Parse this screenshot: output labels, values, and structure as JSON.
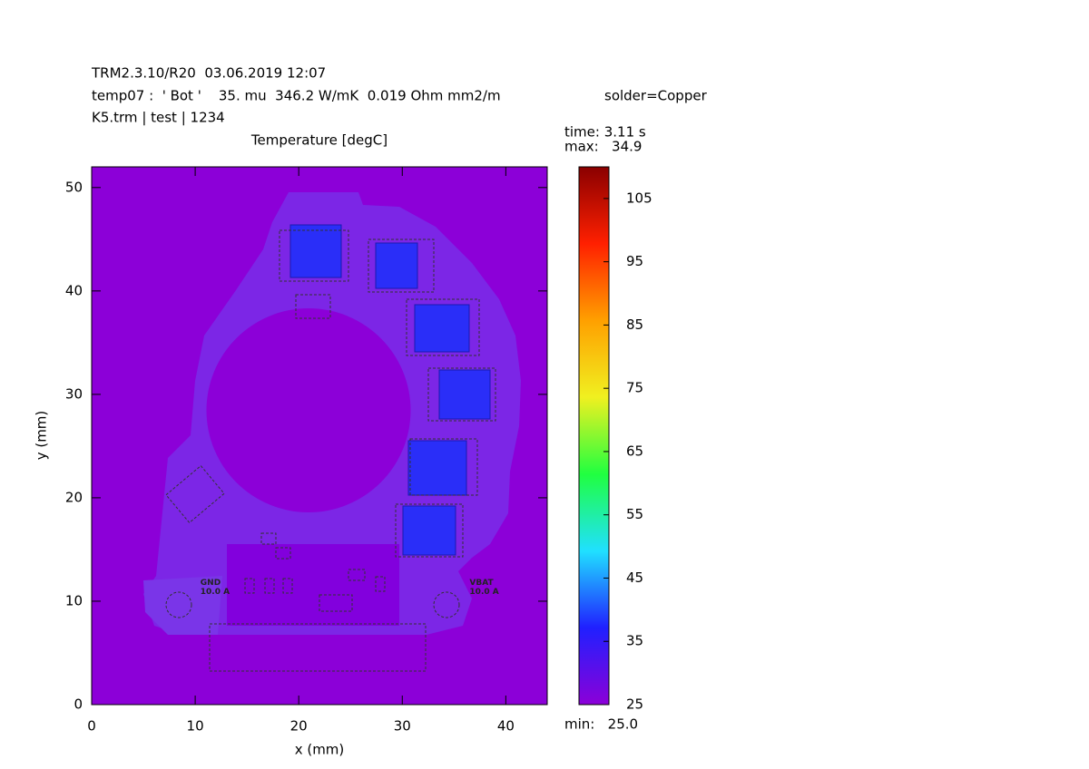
{
  "chart_data": {
    "type": "heatmap",
    "header": [
      "TRM2.3.10/R20  03.06.2019 12:07",
      "temp07 :  ' Bot '    35. mu  346.2 W/mK  0.019 Ohm mm2/m",
      "K5.trm | test | 1234"
    ],
    "header_right": "solder=Copper",
    "title": "Temperature [degC]",
    "time": "time: 3.11 s",
    "max": "max:   34.9",
    "min": "min:   25.0",
    "xlabel": "x (mm)",
    "ylabel": "y (mm)",
    "xlim": [
      0,
      44
    ],
    "xticks": [
      0,
      10,
      20,
      30,
      40
    ],
    "ylim": [
      0,
      52
    ],
    "yticks": [
      0,
      10,
      20,
      30,
      40,
      50
    ],
    "colorbar_lim": [
      25,
      110
    ],
    "colorbar_ticks": [
      25,
      35,
      45,
      55,
      65,
      75,
      85,
      95,
      105
    ],
    "colormap": [
      "#8c00d8",
      "#2020ff",
      "#20e0ff",
      "#20ff40",
      "#f0f020",
      "#ffa000",
      "#ff2000",
      "#8a0000"
    ],
    "annotations": [
      {
        "text": "GND",
        "x": 10.5,
        "y": 11.8
      },
      {
        "text": "10.0 A",
        "x": 10.5,
        "y": 10.9
      },
      {
        "text": "VBAT",
        "x": 36.5,
        "y": 11.8
      },
      {
        "text": "10.0 A",
        "x": 36.5,
        "y": 10.9
      }
    ]
  }
}
